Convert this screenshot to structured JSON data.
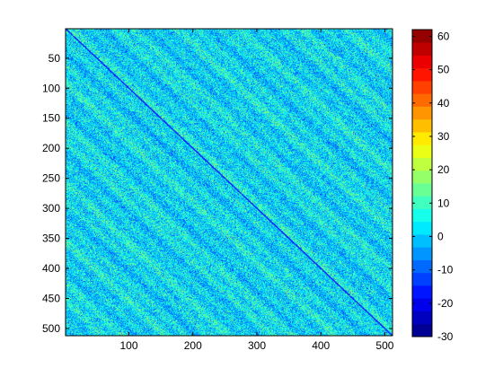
{
  "chart_data": {
    "type": "heatmap",
    "title": "",
    "xlabel": "",
    "ylabel": "",
    "matrix_size": [
      512,
      512
    ],
    "xlim": [
      1,
      512
    ],
    "ylim": [
      1,
      512
    ],
    "y_axis_direction": "reversed",
    "x_ticks": [
      100,
      200,
      300,
      400,
      500
    ],
    "y_ticks": [
      50,
      100,
      150,
      200,
      250,
      300,
      350,
      400,
      450,
      500
    ],
    "x_tick_labels": [
      "100",
      "200",
      "300",
      "400",
      "500"
    ],
    "y_tick_labels": [
      "50",
      "100",
      "150",
      "200",
      "250",
      "300",
      "350",
      "400",
      "450",
      "500"
    ],
    "colorbar": {
      "colormap": "jet",
      "limits": [
        -30,
        62
      ],
      "levels": 24,
      "placement": "right",
      "ticks": [
        -30,
        -20,
        -10,
        0,
        10,
        20,
        30,
        40,
        50,
        60
      ],
      "tick_labels": [
        "-30",
        "-20",
        "-10",
        "0",
        "10",
        "20",
        "30",
        "40",
        "50",
        "60"
      ]
    },
    "value_distribution": {
      "dominant_range": [
        -15,
        10
      ],
      "typical_value": 3,
      "diagonal_band_value": -18,
      "diagonal_bands": "repeating streaks running parallel to the main diagonal, darkest along the main diagonal",
      "max_value_observed": 20
    }
  }
}
